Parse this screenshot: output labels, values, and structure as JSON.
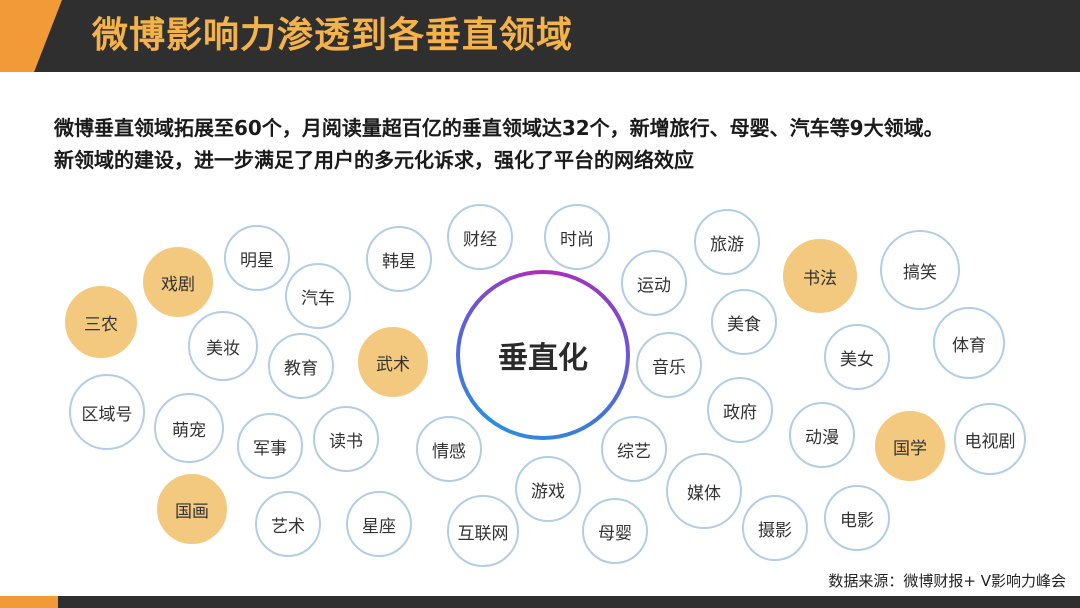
{
  "header": {
    "title": "微博影响力渗透到各垂直领域"
  },
  "summary": {
    "line1": "微博垂直领域拓展至60个，月阅读量超百亿的垂直领域达32个，新增旅行、母婴、汽车等9大领域。",
    "line2": "新领域的建设，进一步满足了用户的多元化诉求，强化了平台的网络效应"
  },
  "diagram": {
    "center_label": "垂直化",
    "highlight_color": "#f3c97f",
    "outline_color": "#b3cde4",
    "domains": [
      {
        "label": "财经",
        "highlight": false
      },
      {
        "label": "时尚",
        "highlight": false
      },
      {
        "label": "旅游",
        "highlight": false
      },
      {
        "label": "明星",
        "highlight": false
      },
      {
        "label": "韩星",
        "highlight": false
      },
      {
        "label": "书法",
        "highlight": true
      },
      {
        "label": "搞笑",
        "highlight": false
      },
      {
        "label": "戏剧",
        "highlight": true
      },
      {
        "label": "汽车",
        "highlight": false
      },
      {
        "label": "运动",
        "highlight": false
      },
      {
        "label": "三农",
        "highlight": true
      },
      {
        "label": "美食",
        "highlight": false
      },
      {
        "label": "美妆",
        "highlight": false
      },
      {
        "label": "教育",
        "highlight": false
      },
      {
        "label": "武术",
        "highlight": true
      },
      {
        "label": "音乐",
        "highlight": false
      },
      {
        "label": "美女",
        "highlight": false
      },
      {
        "label": "体育",
        "highlight": false
      },
      {
        "label": "区域号",
        "highlight": false
      },
      {
        "label": "萌宠",
        "highlight": false
      },
      {
        "label": "军事",
        "highlight": false
      },
      {
        "label": "读书",
        "highlight": false
      },
      {
        "label": "情感",
        "highlight": false
      },
      {
        "label": "综艺",
        "highlight": false
      },
      {
        "label": "政府",
        "highlight": false
      },
      {
        "label": "动漫",
        "highlight": false
      },
      {
        "label": "国学",
        "highlight": true
      },
      {
        "label": "电视剧",
        "highlight": false
      },
      {
        "label": "游戏",
        "highlight": false
      },
      {
        "label": "媒体",
        "highlight": false
      },
      {
        "label": "国画",
        "highlight": true
      },
      {
        "label": "艺术",
        "highlight": false
      },
      {
        "label": "星座",
        "highlight": false
      },
      {
        "label": "互联网",
        "highlight": false
      },
      {
        "label": "母婴",
        "highlight": false
      },
      {
        "label": "摄影",
        "highlight": false
      },
      {
        "label": "电影",
        "highlight": false
      }
    ]
  },
  "source": "数据来源：微博财报+ V影响力峰会"
}
